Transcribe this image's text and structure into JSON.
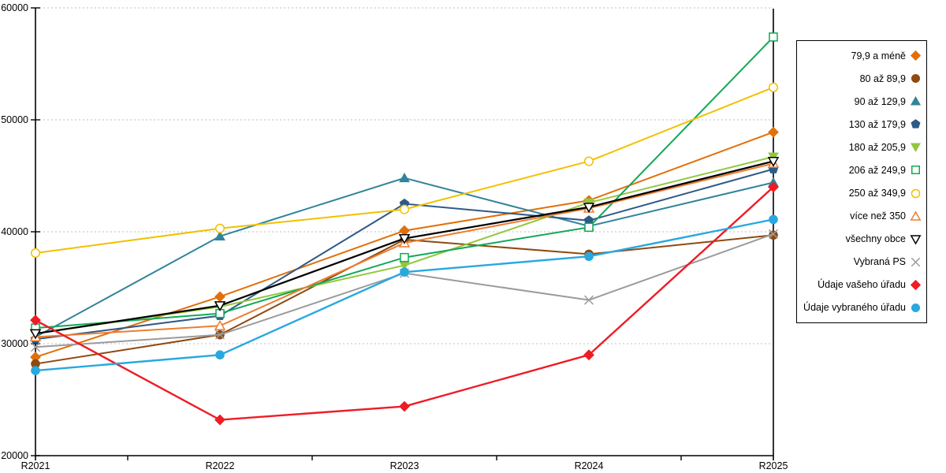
{
  "chart_data": {
    "type": "line",
    "title": "",
    "xlabel": "",
    "ylabel": "",
    "x_categories": [
      "R2021",
      "R2022",
      "R2023",
      "R2024",
      "R2025"
    ],
    "y_ticks": [
      20000,
      30000,
      40000,
      50000,
      60000
    ],
    "ylim": [
      20000,
      60000
    ],
    "grid": "horizontal-dashed",
    "legend_position": "right",
    "series": [
      {
        "name": "79,9 a méně",
        "color": "#E2700A",
        "marker": "diamond",
        "marker_fill": "filled",
        "line_width": 2,
        "values": [
          28800,
          34200,
          40100,
          42800,
          48900
        ]
      },
      {
        "name": "80 až 89,9",
        "color": "#8E4A10",
        "marker": "circle",
        "marker_fill": "filled",
        "line_width": 2,
        "values": [
          28200,
          30800,
          39300,
          38000,
          39700
        ]
      },
      {
        "name": "90 až 129,9",
        "color": "#31849B",
        "marker": "triangle-up",
        "marker_fill": "filled",
        "line_width": 2,
        "values": [
          30600,
          39600,
          44800,
          40500,
          44400
        ]
      },
      {
        "name": "130 až 179,9",
        "color": "#2E5A87",
        "marker": "pentagon",
        "marker_fill": "filled",
        "line_width": 2,
        "values": [
          30400,
          32500,
          42500,
          41000,
          45600
        ]
      },
      {
        "name": "180 až 205,9",
        "color": "#92C83E",
        "marker": "triangle-down",
        "marker_fill": "filled",
        "line_width": 2,
        "values": [
          30900,
          33300,
          37000,
          42600,
          46700
        ]
      },
      {
        "name": "206 až 249,9",
        "color": "#12A857",
        "marker": "square",
        "marker_fill": "open",
        "line_width": 2,
        "values": [
          31400,
          32700,
          37700,
          40400,
          57400
        ]
      },
      {
        "name": "250 až 349,9",
        "color": "#F2C000",
        "marker": "circle",
        "marker_fill": "open",
        "line_width": 2,
        "values": [
          38100,
          40300,
          42000,
          46300,
          52900
        ]
      },
      {
        "name": "více než 350",
        "color": "#EE7D2E",
        "marker": "triangle-up",
        "marker_fill": "open",
        "line_width": 2,
        "values": [
          30600,
          31600,
          39000,
          42100,
          46100
        ]
      },
      {
        "name": "všechny obce",
        "color": "#000000",
        "marker": "triangle-down",
        "marker_fill": "open",
        "line_width": 2.2,
        "values": [
          30900,
          33400,
          39400,
          42200,
          46300
        ]
      },
      {
        "name": "Vybraná PS",
        "color": "#9B9B9B",
        "marker": "x",
        "marker_fill": "open",
        "line_width": 2,
        "values": [
          29700,
          30800,
          36300,
          33900,
          39800
        ]
      },
      {
        "name": "Údaje vašeho úřadu",
        "color": "#EE1C25",
        "marker": "diamond",
        "marker_fill": "filled",
        "line_width": 2.4,
        "values": [
          32100,
          23200,
          24400,
          29000,
          44000
        ]
      },
      {
        "name": "Údaje vybraného úřadu",
        "color": "#29A8E0",
        "marker": "circle",
        "marker_fill": "filled",
        "line_width": 2.4,
        "values": [
          27600,
          29000,
          36400,
          37800,
          41100
        ]
      }
    ]
  },
  "colors": {
    "background": "#FFFFFF",
    "grid": "#BFBFBF",
    "axis": "#000000",
    "tick_label": "#000000",
    "legend_border": "#000000"
  }
}
